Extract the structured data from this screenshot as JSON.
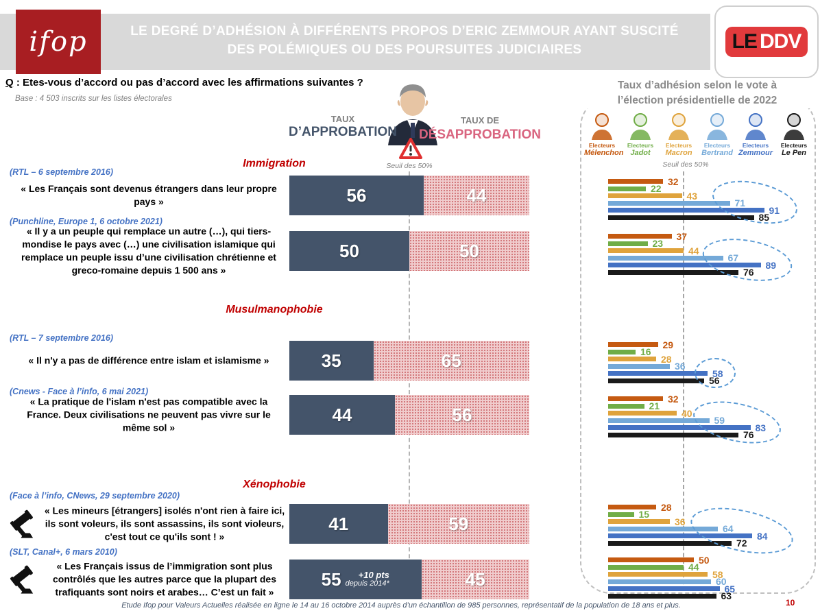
{
  "header": {
    "logo_text": "ifop",
    "title_line1": "LE DEGRÉ D’ADHÉSION À DIFFÉRENTS PROPOS D’ERIC ZEMMOUR AYANT SUSCITÉ",
    "title_line2": "DES POLÉMIQUES OU DES POURSUITES JUDICIAIRES",
    "brand_le": "LE",
    "brand_ddv": "DDV"
  },
  "question": {
    "prefix": "Q",
    "text": " : Etes-vous d’accord ou pas d’accord avec les affirmations suivantes ?"
  },
  "base_note": "Base : 4 503 inscrits sur les listes électorales",
  "columns": {
    "approval_small": "TAUX",
    "approval_big": "D’APPROBATION",
    "disapproval_small": "TAUX DE",
    "disapproval_big": "DÉSAPPROBATION",
    "threshold_label": "Seuil des 50%"
  },
  "right_panel": {
    "title_line1": "Taux d’adhésion selon le vote à",
    "title_line2": "l’élection présidentielle de 2022",
    "threshold_label": "Seuil des 50%",
    "electorates": [
      {
        "prefix": "Electeurs",
        "name": "Mélenchon",
        "color": "#C55A11"
      },
      {
        "prefix": "Electeurs",
        "name": "Jadot",
        "color": "#70AD47"
      },
      {
        "prefix": "Electeurs",
        "name": "Macron",
        "color": "#DFA33C"
      },
      {
        "prefix": "Electeurs",
        "name": "Bertrand",
        "color": "#74A9D8"
      },
      {
        "prefix": "Electeurs",
        "name": "Zemmour",
        "color": "#4472C4"
      },
      {
        "prefix": "Electeurs",
        "name": "Le Pen",
        "color": "#1A1A1A"
      }
    ]
  },
  "colors": {
    "approval_bar": "#44546A",
    "disapproval_fill": "#F0CCCD",
    "disapproval_dot": "#C95C60",
    "section_title": "#C00000",
    "source_text": "#4472C4",
    "ellipse": "#5B9BD5"
  },
  "sections": [
    {
      "title": "Immigration",
      "rows": [
        {
          "source": "(RTL – 6 septembre 2016)",
          "quote": "« Les Français sont devenus étrangers dans leur propre pays »",
          "approve": 56,
          "disapprove": 44,
          "gavel": false,
          "circled": true,
          "by_vote": [
            32,
            22,
            43,
            71,
            91,
            85
          ]
        },
        {
          "source": "(Punchline, Europe 1, 6 octobre 2021)",
          "quote": "« Il y a un peuple qui remplace un autre (…), qui tiers-mondise le pays avec (…) une civilisation islamique qui remplace un peuple issu d’une civilisation chrétienne et greco-romaine depuis 1 500 ans »",
          "approve": 50,
          "disapprove": 50,
          "gavel": false,
          "circled": true,
          "by_vote": [
            37,
            23,
            44,
            67,
            89,
            76
          ]
        }
      ]
    },
    {
      "title": "Musulmanophobie",
      "rows": [
        {
          "source": "(RTL – 7 septembre 2016)",
          "quote": "« Il n'y a pas de différence entre islam et islamisme »",
          "approve": 35,
          "disapprove": 65,
          "gavel": false,
          "circled": true,
          "by_vote": [
            29,
            16,
            28,
            36,
            58,
            56
          ]
        },
        {
          "source": "(Cnews - Face à l’info, 6 mai 2021)",
          "quote": "« La pratique de l'islam n'est pas compatible avec la France. Deux civilisations ne peuvent pas vivre sur le même sol »",
          "approve": 44,
          "disapprove": 56,
          "gavel": false,
          "circled": true,
          "by_vote": [
            32,
            21,
            40,
            59,
            83,
            76
          ]
        }
      ]
    },
    {
      "title": "Xénophobie",
      "rows": [
        {
          "source": "(Face à l’info, CNews, 29 septembre 2020)",
          "quote": "« Les mineurs [étrangers] isolés n'ont rien à faire ici, ils sont voleurs, ils sont assassins, ils sont violeurs, c'est tout ce qu'ils sont ! »",
          "approve": 41,
          "disapprove": 59,
          "gavel": true,
          "circled": true,
          "by_vote": [
            28,
            15,
            36,
            64,
            84,
            72
          ]
        },
        {
          "source": "(SLT, Canal+, 6 mars 2010)",
          "quote": "« Les Français issus de l’immigration sont plus contrôlés que les autres parce que la plupart des trafiquants sont noirs et arabes… C’est un fait »",
          "approve": 55,
          "disapprove": 45,
          "gavel": true,
          "circled": false,
          "note": {
            "pts": "+10 pts",
            "since": "depuis 2014*"
          },
          "by_vote": [
            50,
            44,
            58,
            60,
            65,
            63
          ]
        }
      ]
    }
  ],
  "footer": "Etude Ifop pour Valeurs Actuelles réalisée en ligne le 14 au 16 octobre 2014 auprès d’un échantillon de 985 personnes, représentatif de la population de 18 ans et plus.",
  "page_number": "10",
  "chart_data": {
    "type": "bar",
    "title": "Le degré d’adhésion à différents propos d’Eric Zemmour ayant suscité des polémiques ou des poursuites judiciaires",
    "categories": [
      "« Les Français sont devenus étrangers dans leur propre pays »",
      "« Il y a un peuple qui remplace un autre (…), qui tiers-mondise le pays avec (…) une civilisation islamique qui remplace un peuple issu d’une civilisation chrétienne et greco-romaine depuis 1 500 ans »",
      "« Il n'y a pas de différence entre islam et islamisme »",
      "« La pratique de l'islam n'est pas compatible avec la France. Deux civilisations ne peuvent pas vivre sur le même sol »",
      "« Les mineurs [étrangers] isolés n'ont rien à faire ici, ils sont voleurs, ils sont assassins, ils sont violeurs, c'est tout ce qu'ils sont ! »",
      "« Les Français issus de l’immigration sont plus contrôlés que les autres parce que la plupart des trafiquants sont noirs et arabes… C’est un fait »"
    ],
    "series": [
      {
        "name": "Taux d’approbation",
        "values": [
          56,
          50,
          35,
          44,
          41,
          55
        ]
      },
      {
        "name": "Taux de désapprobation",
        "values": [
          44,
          50,
          65,
          56,
          59,
          45
        ]
      }
    ],
    "by_vote_series": [
      {
        "name": "Electeurs Mélenchon",
        "values": [
          32,
          37,
          29,
          32,
          28,
          50
        ]
      },
      {
        "name": "Electeurs Jadot",
        "values": [
          22,
          23,
          16,
          21,
          15,
          44
        ]
      },
      {
        "name": "Electeurs Macron",
        "values": [
          43,
          44,
          28,
          40,
          36,
          58
        ]
      },
      {
        "name": "Electeurs Bertrand",
        "values": [
          71,
          67,
          36,
          59,
          64,
          60
        ]
      },
      {
        "name": "Electeurs Zemmour",
        "values": [
          91,
          89,
          58,
          83,
          84,
          65
        ]
      },
      {
        "name": "Electeurs Le Pen",
        "values": [
          85,
          76,
          56,
          76,
          72,
          63
        ]
      }
    ],
    "xlim": [
      0,
      100
    ],
    "threshold": 50,
    "legend_position": "top",
    "grid": false
  }
}
